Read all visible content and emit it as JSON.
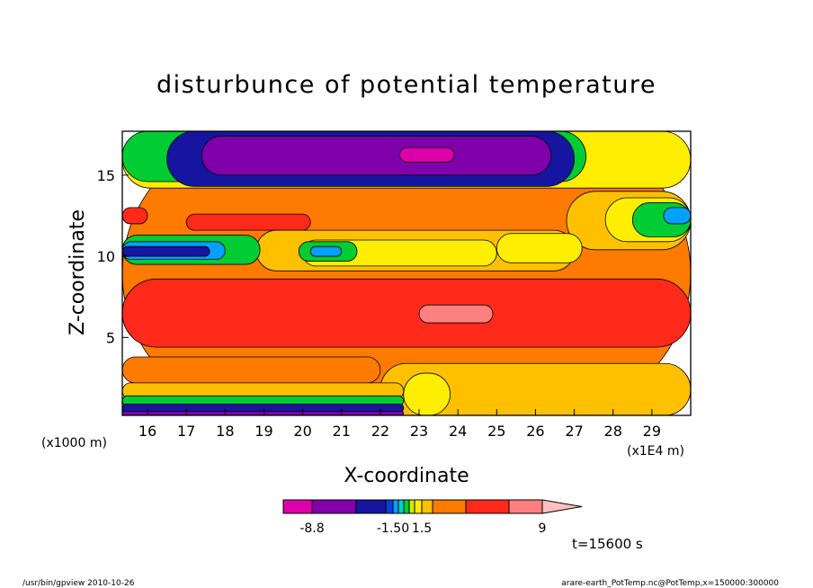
{
  "chart_data": {
    "type": "heatmap",
    "title": "disturbunce of potential temperature",
    "xlabel": "X-coordinate",
    "ylabel": "Z-coordinate",
    "x_unit_left": "(x1000 m)",
    "x_unit_right": "(x1E4 m)",
    "xlim": [
      15.35,
      30.0
    ],
    "ylim": [
      0.2,
      17.7
    ],
    "x_ticks": [
      16,
      17,
      18,
      19,
      20,
      21,
      22,
      23,
      24,
      25,
      26,
      27,
      28,
      29
    ],
    "y_ticks": [
      5,
      10,
      15
    ],
    "time_label": "t=15600 s",
    "colorbar": {
      "colors": [
        "#dd00aa",
        "#7f00aa",
        "#1515a0",
        "#0040e0",
        "#00a0ff",
        "#00d0c0",
        "#00cc33",
        "#ccee00",
        "#ffee00",
        "#ffc000",
        "#ff7a00",
        "#ff2a1a",
        "#ff8080",
        "#ffc0c0"
      ],
      "tick_labels": [
        "-8.8",
        "-1.50",
        "1.5",
        "9"
      ]
    },
    "regions": [
      {
        "x0": 15.35,
        "x1": 30.0,
        "z0": 0.2,
        "z1": 17.7,
        "level": "#ff7a00"
      },
      {
        "x0": 15.35,
        "x1": 30.0,
        "z0": 14.2,
        "z1": 17.7,
        "level": "#ffee00"
      },
      {
        "x0": 15.35,
        "x1": 27.3,
        "z0": 14.6,
        "z1": 17.7,
        "level": "#00cc33"
      },
      {
        "x0": 16.5,
        "x1": 27.0,
        "z0": 14.3,
        "z1": 17.7,
        "level": "#1515a0"
      },
      {
        "x0": 17.4,
        "x1": 26.4,
        "z0": 15.0,
        "z1": 17.4,
        "level": "#7f00aa"
      },
      {
        "x0": 22.5,
        "x1": 23.9,
        "z0": 15.8,
        "z1": 16.7,
        "level": "#dd00aa"
      },
      {
        "x0": 26.8,
        "x1": 30.0,
        "z0": 10.4,
        "z1": 14.0,
        "level": "#ffc000"
      },
      {
        "x0": 27.8,
        "x1": 30.0,
        "z0": 10.9,
        "z1": 13.6,
        "level": "#ffee00"
      },
      {
        "x0": 28.5,
        "x1": 30.0,
        "z0": 11.2,
        "z1": 13.3,
        "level": "#00cc33"
      },
      {
        "x0": 29.3,
        "x1": 30.0,
        "z0": 12.0,
        "z1": 13.0,
        "level": "#00a0ff"
      },
      {
        "x0": 15.35,
        "x1": 16.0,
        "z0": 12.0,
        "z1": 13.0,
        "level": "#ff2a1a"
      },
      {
        "x0": 17.0,
        "x1": 20.2,
        "z0": 11.6,
        "z1": 12.6,
        "level": "#ff2a1a"
      },
      {
        "x0": 18.8,
        "x1": 27.0,
        "z0": 9.1,
        "z1": 11.6,
        "level": "#ffc000"
      },
      {
        "x0": 20.0,
        "x1": 25.0,
        "z0": 9.4,
        "z1": 11.0,
        "level": "#ffee00"
      },
      {
        "x0": 25.0,
        "x1": 27.2,
        "z0": 9.6,
        "z1": 11.4,
        "level": "#ffee00"
      },
      {
        "x0": 19.9,
        "x1": 21.4,
        "z0": 9.7,
        "z1": 10.9,
        "level": "#00cc33"
      },
      {
        "x0": 20.2,
        "x1": 21.0,
        "z0": 10.0,
        "z1": 10.6,
        "level": "#00a0ff"
      },
      {
        "x0": 15.35,
        "x1": 18.9,
        "z0": 9.5,
        "z1": 11.3,
        "level": "#00cc33"
      },
      {
        "x0": 15.35,
        "x1": 18.0,
        "z0": 9.8,
        "z1": 10.9,
        "level": "#00a0ff"
      },
      {
        "x0": 15.35,
        "x1": 17.6,
        "z0": 10.0,
        "z1": 10.6,
        "level": "#1515a0"
      },
      {
        "x0": 15.35,
        "x1": 30.0,
        "z0": 4.4,
        "z1": 8.6,
        "level": "#ff2a1a"
      },
      {
        "x0": 23.0,
        "x1": 24.9,
        "z0": 5.9,
        "z1": 7.0,
        "level": "#ff8080"
      },
      {
        "x0": 15.35,
        "x1": 22.0,
        "z0": 2.2,
        "z1": 3.8,
        "level": "#ff7a00"
      },
      {
        "x0": 22.0,
        "x1": 30.0,
        "z0": 0.2,
        "z1": 3.4,
        "level": "#ffc000"
      },
      {
        "x0": 22.6,
        "x1": 23.8,
        "z0": 0.2,
        "z1": 2.8,
        "level": "#ffee00"
      },
      {
        "x0": 15.35,
        "x1": 22.6,
        "z0": 1.2,
        "z1": 2.2,
        "level": "#ffc000"
      },
      {
        "x0": 15.35,
        "x1": 22.6,
        "z0": 0.8,
        "z1": 1.4,
        "level": "#00cc33"
      },
      {
        "x0": 15.35,
        "x1": 22.6,
        "z0": 0.4,
        "z1": 0.9,
        "level": "#1515a0"
      },
      {
        "x0": 15.35,
        "x1": 22.6,
        "z0": 0.2,
        "z1": 0.45,
        "level": "#7f00aa"
      }
    ]
  },
  "footer": {
    "left": "/usr/bin/gpview   2010-10-26",
    "right": "arare-earth_PotTemp.nc@PotTemp,x=150000:300000"
  }
}
